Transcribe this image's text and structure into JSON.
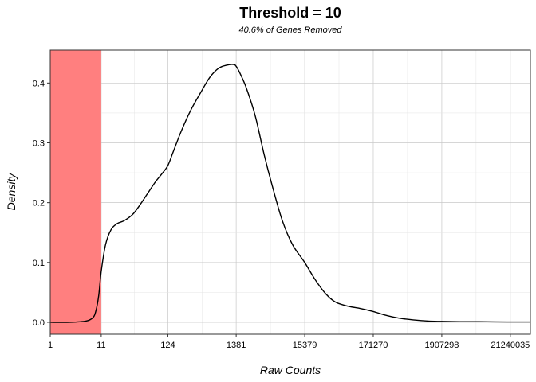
{
  "chart_data": {
    "type": "area",
    "title": "Threshold = 10",
    "subtitle": "40.6% of Genes Removed",
    "xlabel": "Raw Counts",
    "ylabel": "Density",
    "x_scale": "log10(count + 1)",
    "xlim": [
      1,
      43000000
    ],
    "ylim": [
      -0.02,
      0.455
    ],
    "x_ticks": [
      1,
      11,
      124,
      1381,
      15379,
      171270,
      1907298,
      21240035
    ],
    "x_tick_labels": [
      "1",
      "11",
      "124",
      "1381",
      "15379",
      "171270",
      "1907298",
      "21240035"
    ],
    "y_ticks": [
      0.0,
      0.1,
      0.2,
      0.3,
      0.4
    ],
    "y_tick_labels": [
      "0.0",
      "0.1",
      "0.2",
      "0.3",
      "0.4"
    ],
    "grid": true,
    "removed_region": {
      "from": 1,
      "to": 11,
      "color": "#ff7f7f"
    },
    "line_color": "#000000",
    "series": [
      {
        "x": [
          1,
          3,
          6,
          8,
          9,
          10,
          11,
          13,
          16,
          20,
          26,
          35,
          45,
          60,
          80,
          100,
          124,
          150,
          200,
          280,
          400,
          550,
          750,
          1000,
          1250,
          1381,
          1600,
          2000,
          2700,
          3700,
          5000,
          7000,
          10000,
          15379,
          22000,
          32000,
          45000,
          70000,
          110000,
          171270,
          260000,
          420000,
          700000,
          1200000,
          1907298,
          3500000,
          7000000,
          21240035,
          43000000
        ],
        "y": [
          0.0,
          0.0,
          0.002,
          0.008,
          0.02,
          0.045,
          0.085,
          0.13,
          0.155,
          0.165,
          0.17,
          0.18,
          0.195,
          0.215,
          0.235,
          0.248,
          0.262,
          0.285,
          0.32,
          0.355,
          0.385,
          0.41,
          0.425,
          0.43,
          0.431,
          0.428,
          0.415,
          0.39,
          0.345,
          0.28,
          0.225,
          0.17,
          0.13,
          0.1,
          0.072,
          0.048,
          0.034,
          0.027,
          0.023,
          0.018,
          0.012,
          0.007,
          0.004,
          0.002,
          0.0015,
          0.001,
          0.001,
          0.0005,
          0.0005
        ]
      }
    ]
  }
}
